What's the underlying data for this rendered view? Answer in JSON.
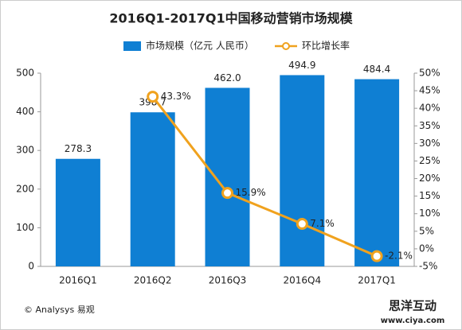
{
  "chart_data": {
    "type": "bar",
    "title": "2016Q1-2017Q1中国移动营销市场规模",
    "categories": [
      "2016Q1",
      "2016Q2",
      "2016Q3",
      "2016Q4",
      "2017Q1"
    ],
    "series": [
      {
        "name": "市场规模（亿元 人民币）",
        "color": "#0f7fd3",
        "values": [
          278.3,
          398.7,
          462.0,
          494.9,
          484.4
        ],
        "value_labels": [
          "278.3",
          "398.7",
          "462.0",
          "494.9",
          "484.4"
        ]
      },
      {
        "name": "环比增长率",
        "type": "line",
        "axis": "y2",
        "color": "#f0a21e",
        "values": [
          null,
          43.3,
          15.9,
          7.1,
          -2.1
        ],
        "value_labels": [
          null,
          "43.3%",
          "15.9%",
          "7.1%",
          "-2.1%"
        ]
      }
    ],
    "ylim": [
      0,
      500
    ],
    "yticks": [
      0,
      100,
      200,
      300,
      400,
      500
    ],
    "y2lim": [
      -5,
      50
    ],
    "y2ticks": [
      {
        "value": -5,
        "label": "-5%"
      },
      {
        "value": 0,
        "label": "0%"
      },
      {
        "value": 5,
        "label": "5%"
      },
      {
        "value": 10,
        "label": "10%"
      },
      {
        "value": 15,
        "label": "15%"
      },
      {
        "value": 20,
        "label": "20%"
      },
      {
        "value": 25,
        "label": "25%"
      },
      {
        "value": 30,
        "label": "30%"
      },
      {
        "value": 35,
        "label": "35%"
      },
      {
        "value": 40,
        "label": "40%"
      },
      {
        "value": 45,
        "label": "45%"
      },
      {
        "value": 50,
        "label": "50%"
      }
    ],
    "grid": false,
    "source": "© Analysys 易观",
    "watermark": "思洋互动",
    "watermark_url": "www.ciya.com"
  }
}
